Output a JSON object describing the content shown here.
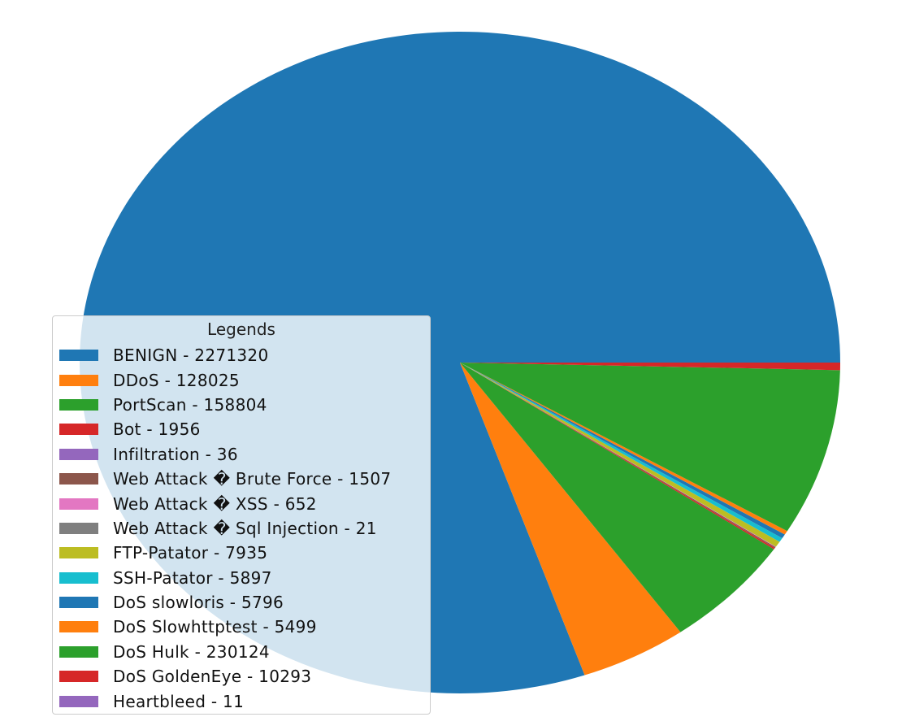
{
  "chart_data": {
    "type": "pie",
    "legend_title": "Legends",
    "legend_placement": "lower-left",
    "slices": [
      {
        "label": "BENIGN - 2271320",
        "value": 2271320,
        "color": "#1f77b4"
      },
      {
        "label": "DDoS - 128025",
        "value": 128025,
        "color": "#ff7f0e"
      },
      {
        "label": "PortScan - 158804",
        "value": 158804,
        "color": "#2ca02c"
      },
      {
        "label": "Bot - 1956",
        "value": 1956,
        "color": "#d62728"
      },
      {
        "label": "Infiltration - 36",
        "value": 36,
        "color": "#9467bd"
      },
      {
        "label": "Web Attack � Brute Force - 1507",
        "value": 1507,
        "color": "#8c564b"
      },
      {
        "label": "Web Attack � XSS - 652",
        "value": 652,
        "color": "#e377c2"
      },
      {
        "label": "Web Attack � Sql Injection - 21",
        "value": 21,
        "color": "#7f7f7f"
      },
      {
        "label": "FTP-Patator - 7935",
        "value": 7935,
        "color": "#bcbd22"
      },
      {
        "label": "SSH-Patator - 5897",
        "value": 5897,
        "color": "#17becf"
      },
      {
        "label": "DoS slowloris - 5796",
        "value": 5796,
        "color": "#1f77b4"
      },
      {
        "label": "DoS Slowhttptest - 5499",
        "value": 5499,
        "color": "#ff7f0e"
      },
      {
        "label": "DoS Hulk - 230124",
        "value": 230124,
        "color": "#2ca02c"
      },
      {
        "label": "DoS GoldenEye - 10293",
        "value": 10293,
        "color": "#d62728"
      },
      {
        "label": "Heartbleed - 11",
        "value": 11,
        "color": "#9467bd"
      }
    ]
  }
}
